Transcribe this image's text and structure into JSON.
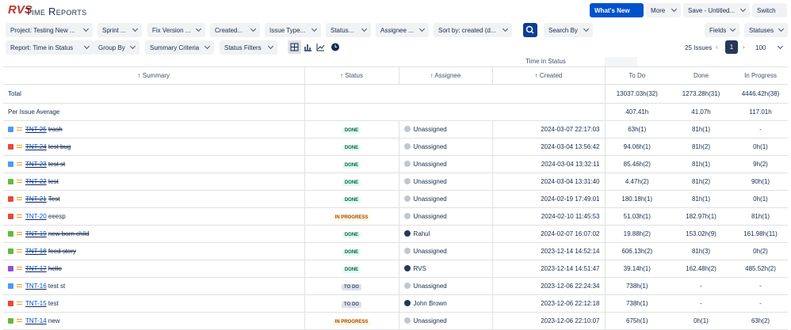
{
  "header": {
    "logo": "RVS",
    "title": "Time Reports",
    "buttons": [
      "What's New",
      "More",
      "Save - Untitled...",
      "Switch to"
    ]
  },
  "filters": [
    "Project: Testing New ...",
    "Sprint ...",
    "Fix Version ...",
    "Created...",
    "Issue Type...",
    "Status...",
    "Assignee ...",
    "Sort by: created (d..."
  ],
  "search_by": "Search By",
  "fields": "Fields",
  "statuses": "Statuses",
  "report_controls": [
    "Report: Time in Status",
    "Group By",
    "Summary Criteria",
    "Status Filters"
  ],
  "pagination": {
    "count": "25 Issues",
    "page": "1",
    "per_page": "100"
  },
  "table": {
    "group_header": "Time in Status",
    "columns": [
      "Summary",
      "Status",
      "Assignee",
      "Created",
      "To Do",
      "Done",
      "In Progress"
    ],
    "total": {
      "label": "Total",
      "values": [
        "13037.03h(32)",
        "1273.28h(31)",
        "4446.42h(38)"
      ]
    },
    "average": {
      "label": "Per Issue Average",
      "values": [
        "407.41h",
        "41.07h",
        "117.01h"
      ]
    },
    "rows": [
      {
        "key": "TNT-25",
        "summary": "trash",
        "status": "DONE",
        "assignee": "Unassigned",
        "created": "2024-03-07 22:17:03",
        "times": [
          "63h(1)",
          "81h(1)",
          "-"
        ],
        "type_color": "#4c9aff",
        "resolved": true
      },
      {
        "key": "TNT-24",
        "summary": "test bug",
        "status": "DONE",
        "assignee": "Unassigned",
        "created": "2024-03-04 13:56:42",
        "times": [
          "94.06h(1)",
          "81h(2)",
          "0h(1)"
        ],
        "type_color": "#e5493a",
        "resolved": true
      },
      {
        "key": "TNT-23",
        "summary": "test st",
        "status": "DONE",
        "assignee": "Unassigned",
        "created": "2024-03-04 13:32:11",
        "times": [
          "85.46h(2)",
          "81h(1)",
          "9h(2)"
        ],
        "type_color": "#4c9aff",
        "resolved": true
      },
      {
        "key": "TNT-22",
        "summary": "test",
        "status": "DONE",
        "assignee": "Unassigned",
        "created": "2024-03-04 13:31:40",
        "times": [
          "4.47h(2)",
          "81h(2)",
          "90h(1)"
        ],
        "type_color": "#63ba3c",
        "resolved": true
      },
      {
        "key": "TNT-21",
        "summary": "Test",
        "status": "DONE",
        "assignee": "Unassigned",
        "created": "2024-02-19 17:49:01",
        "times": [
          "180.18h(1)",
          "81h(1)",
          "0h(1)"
        ],
        "type_color": "#e5493a",
        "resolved": true
      },
      {
        "key": "TNT-20",
        "summary": "eeesp",
        "status": "IN PROGRESS",
        "assignee": "Unassigned",
        "created": "2024-02-10 11:45:53",
        "times": [
          "51.03h(1)",
          "182.97h(1)",
          "81h(1)"
        ],
        "type_color": "#e5493a",
        "resolved": false
      },
      {
        "key": "TNT-19",
        "summary": "new born child",
        "status": "DONE",
        "assignee": "Rahul",
        "created": "2024-02-07 16:07:02",
        "times": [
          "19.88h(2)",
          "153.02h(9)",
          "161.98h(11)"
        ],
        "type_color": "#63ba3c",
        "resolved": true
      },
      {
        "key": "TNT-18",
        "summary": "feed story",
        "status": "DONE",
        "assignee": "Unassigned",
        "created": "2023-12-14 14:52:14",
        "times": [
          "606.13h(2)",
          "81h(3)",
          "0h(2)"
        ],
        "type_color": "#63ba3c",
        "resolved": true
      },
      {
        "key": "TNT-17",
        "summary": "hello",
        "status": "DONE",
        "assignee": "RVS",
        "created": "2023-12-14 14:51:47",
        "times": [
          "39.14h(1)",
          "162.48h(2)",
          "485.52h(2)"
        ],
        "type_color": "#904ee2",
        "resolved": true
      },
      {
        "key": "TNT-16",
        "summary": "test st",
        "status": "TO DO",
        "assignee": "Unassigned",
        "created": "2023-12-06 22:24:34",
        "times": [
          "738h(1)",
          "-",
          "-"
        ],
        "type_color": "#4c9aff",
        "resolved": false
      },
      {
        "key": "TNT-15",
        "summary": "test",
        "status": "TO DO",
        "assignee": "John Brown",
        "created": "2023-12-06 22:12:18",
        "times": [
          "738h(1)",
          "-",
          "-"
        ],
        "type_color": "#e5493a",
        "resolved": false
      },
      {
        "key": "TNT-14",
        "summary": "new",
        "status": "IN PROGRESS",
        "assignee": "Unassigned",
        "created": "2023-12-06 22:10:07",
        "times": [
          "675h(1)",
          "0h(1)",
          "63h(2)"
        ],
        "type_color": "#63ba3c",
        "resolved": false
      }
    ]
  }
}
